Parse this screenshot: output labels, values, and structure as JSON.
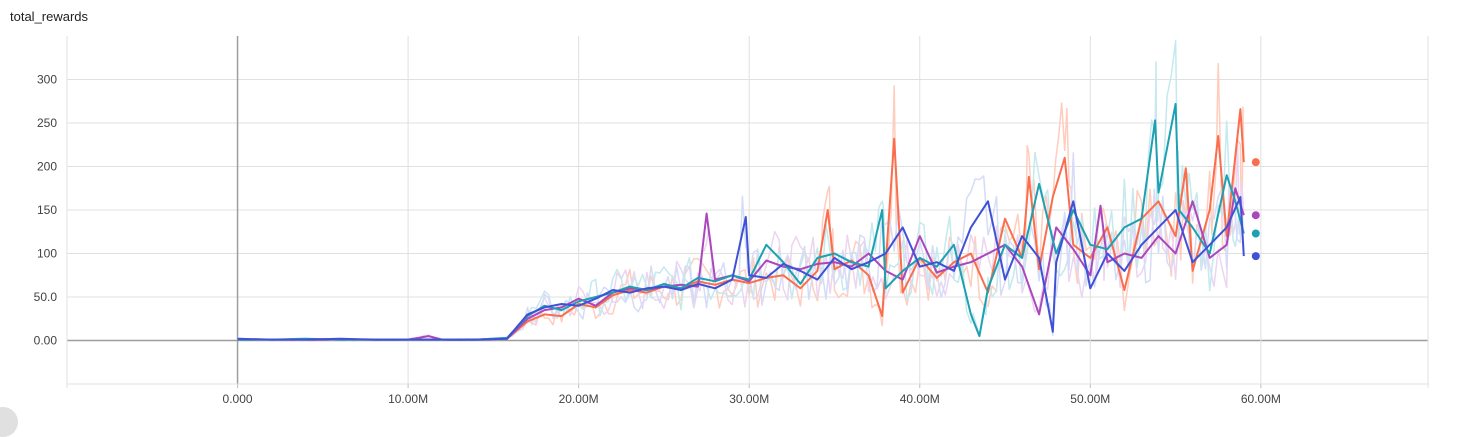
{
  "chart_data": {
    "type": "line",
    "title": "total_rewards",
    "xlabel": "",
    "ylabel": "",
    "xlim": [
      -10000000,
      69800000
    ],
    "ylim": [
      -50,
      350
    ],
    "xticks": [
      0,
      10000000,
      20000000,
      30000000,
      40000000,
      50000000,
      60000000
    ],
    "xtick_labels": [
      "0.000",
      "10.00M",
      "20.00M",
      "30.00M",
      "40.00M",
      "50.00M",
      "60.00M"
    ],
    "yticks": [
      0,
      50,
      100,
      150,
      200,
      250,
      300
    ],
    "ytick_labels": [
      "0.00",
      "50.0",
      "100",
      "150",
      "200",
      "250",
      "300"
    ],
    "grid": true,
    "legend": "none",
    "series": [
      {
        "color": "#fa6e4d",
        "raw_color": "#ffcdbd",
        "final_value": 205,
        "points": [
          [
            0,
            1
          ],
          [
            2000000,
            1
          ],
          [
            4000000,
            1
          ],
          [
            6000000,
            1
          ],
          [
            8000000,
            1
          ],
          [
            10000000,
            1
          ],
          [
            12000000,
            1
          ],
          [
            14000000,
            1
          ],
          [
            15800000,
            2
          ],
          [
            17000000,
            22
          ],
          [
            18000000,
            30
          ],
          [
            19000000,
            28
          ],
          [
            20000000,
            42
          ],
          [
            21000000,
            38
          ],
          [
            22000000,
            52
          ],
          [
            23000000,
            58
          ],
          [
            24000000,
            55
          ],
          [
            25000000,
            62
          ],
          [
            26000000,
            60
          ],
          [
            27000000,
            68
          ],
          [
            28000000,
            64
          ],
          [
            29000000,
            70
          ],
          [
            30000000,
            66
          ],
          [
            31000000,
            72
          ],
          [
            32000000,
            75
          ],
          [
            33000000,
            60
          ],
          [
            34000000,
            80
          ],
          [
            34600000,
            150
          ],
          [
            35000000,
            82
          ],
          [
            36000000,
            92
          ],
          [
            37000000,
            75
          ],
          [
            37800000,
            28
          ],
          [
            38500000,
            232
          ],
          [
            39000000,
            55
          ],
          [
            40000000,
            95
          ],
          [
            41000000,
            72
          ],
          [
            42000000,
            90
          ],
          [
            43000000,
            100
          ],
          [
            44000000,
            55
          ],
          [
            45000000,
            140
          ],
          [
            46000000,
            95
          ],
          [
            46400000,
            188
          ],
          [
            47000000,
            82
          ],
          [
            47800000,
            165
          ],
          [
            48500000,
            210
          ],
          [
            49000000,
            110
          ],
          [
            50000000,
            95
          ],
          [
            51000000,
            130
          ],
          [
            52000000,
            58
          ],
          [
            53000000,
            140
          ],
          [
            54000000,
            160
          ],
          [
            55000000,
            120
          ],
          [
            55600000,
            198
          ],
          [
            56000000,
            80
          ],
          [
            57000000,
            150
          ],
          [
            57500000,
            235
          ],
          [
            58000000,
            120
          ],
          [
            58800000,
            266
          ],
          [
            59000000,
            205
          ]
        ]
      },
      {
        "color": "#ab47bc",
        "raw_color": "#ebd5f0",
        "final_value": 144,
        "points": [
          [
            0,
            1
          ],
          [
            2000000,
            1
          ],
          [
            4000000,
            1
          ],
          [
            6000000,
            1
          ],
          [
            8000000,
            1
          ],
          [
            10000000,
            1
          ],
          [
            11200000,
            5
          ],
          [
            12000000,
            1
          ],
          [
            14000000,
            1
          ],
          [
            15800000,
            2
          ],
          [
            17000000,
            25
          ],
          [
            18000000,
            35
          ],
          [
            19000000,
            38
          ],
          [
            20000000,
            48
          ],
          [
            21000000,
            40
          ],
          [
            22000000,
            55
          ],
          [
            23000000,
            60
          ],
          [
            24000000,
            58
          ],
          [
            25000000,
            62
          ],
          [
            26000000,
            64
          ],
          [
            27000000,
            62
          ],
          [
            27500000,
            146
          ],
          [
            28000000,
            70
          ],
          [
            29000000,
            75
          ],
          [
            30000000,
            68
          ],
          [
            31000000,
            92
          ],
          [
            32000000,
            85
          ],
          [
            33000000,
            82
          ],
          [
            34000000,
            88
          ],
          [
            35000000,
            90
          ],
          [
            36000000,
            85
          ],
          [
            37000000,
            100
          ],
          [
            38000000,
            80
          ],
          [
            39000000,
            70
          ],
          [
            40000000,
            120
          ],
          [
            41000000,
            78
          ],
          [
            42000000,
            85
          ],
          [
            43000000,
            90
          ],
          [
            44000000,
            100
          ],
          [
            45000000,
            110
          ],
          [
            46000000,
            85
          ],
          [
            47000000,
            30
          ],
          [
            48000000,
            130
          ],
          [
            49000000,
            105
          ],
          [
            50000000,
            75
          ],
          [
            50600000,
            155
          ],
          [
            51000000,
            90
          ],
          [
            52000000,
            100
          ],
          [
            53000000,
            95
          ],
          [
            54000000,
            120
          ],
          [
            55000000,
            100
          ],
          [
            56000000,
            160
          ],
          [
            57000000,
            95
          ],
          [
            58000000,
            110
          ],
          [
            58500000,
            175
          ],
          [
            59000000,
            144
          ]
        ]
      },
      {
        "color": "#1ea0b3",
        "raw_color": "#c4e9ee",
        "final_value": 123,
        "points": [
          [
            0,
            1
          ],
          [
            2000000,
            1
          ],
          [
            4000000,
            2
          ],
          [
            6000000,
            1
          ],
          [
            8000000,
            1
          ],
          [
            10000000,
            1
          ],
          [
            12000000,
            1
          ],
          [
            14000000,
            1
          ],
          [
            15800000,
            3
          ],
          [
            17000000,
            28
          ],
          [
            18000000,
            40
          ],
          [
            19000000,
            35
          ],
          [
            20000000,
            45
          ],
          [
            21000000,
            50
          ],
          [
            22000000,
            55
          ],
          [
            23000000,
            62
          ],
          [
            24000000,
            58
          ],
          [
            25000000,
            65
          ],
          [
            26000000,
            60
          ],
          [
            27000000,
            72
          ],
          [
            28000000,
            68
          ],
          [
            29000000,
            75
          ],
          [
            30000000,
            70
          ],
          [
            31000000,
            110
          ],
          [
            32000000,
            90
          ],
          [
            33000000,
            65
          ],
          [
            34000000,
            95
          ],
          [
            35000000,
            100
          ],
          [
            36000000,
            90
          ],
          [
            37000000,
            85
          ],
          [
            37800000,
            150
          ],
          [
            38000000,
            60
          ],
          [
            39000000,
            80
          ],
          [
            40000000,
            95
          ],
          [
            41000000,
            85
          ],
          [
            42000000,
            110
          ],
          [
            43000000,
            30
          ],
          [
            43500000,
            5
          ],
          [
            44000000,
            60
          ],
          [
            45000000,
            110
          ],
          [
            46000000,
            95
          ],
          [
            47000000,
            180
          ],
          [
            48000000,
            100
          ],
          [
            49000000,
            150
          ],
          [
            50000000,
            110
          ],
          [
            51000000,
            105
          ],
          [
            52000000,
            130
          ],
          [
            53000000,
            140
          ],
          [
            53800000,
            253
          ],
          [
            54000000,
            170
          ],
          [
            55000000,
            272
          ],
          [
            55200000,
            150
          ],
          [
            56000000,
            130
          ],
          [
            57000000,
            100
          ],
          [
            58000000,
            190
          ],
          [
            58500000,
            160
          ],
          [
            59000000,
            123
          ]
        ]
      },
      {
        "color": "#3f51d6",
        "raw_color": "#d6dcf7",
        "final_value": 97,
        "points": [
          [
            0,
            2
          ],
          [
            2000000,
            1
          ],
          [
            4000000,
            1
          ],
          [
            6000000,
            2
          ],
          [
            8000000,
            1
          ],
          [
            10000000,
            1
          ],
          [
            12000000,
            1
          ],
          [
            14000000,
            1
          ],
          [
            15800000,
            2
          ],
          [
            17000000,
            30
          ],
          [
            18000000,
            38
          ],
          [
            19000000,
            42
          ],
          [
            20000000,
            40
          ],
          [
            21000000,
            48
          ],
          [
            22000000,
            58
          ],
          [
            23000000,
            55
          ],
          [
            24000000,
            60
          ],
          [
            25000000,
            62
          ],
          [
            26000000,
            58
          ],
          [
            27000000,
            65
          ],
          [
            28000000,
            60
          ],
          [
            29000000,
            70
          ],
          [
            29800000,
            142
          ],
          [
            30000000,
            75
          ],
          [
            31000000,
            72
          ],
          [
            32000000,
            88
          ],
          [
            33000000,
            80
          ],
          [
            34000000,
            70
          ],
          [
            35000000,
            95
          ],
          [
            36000000,
            82
          ],
          [
            37000000,
            90
          ],
          [
            38000000,
            100
          ],
          [
            39000000,
            130
          ],
          [
            40000000,
            85
          ],
          [
            41000000,
            90
          ],
          [
            42000000,
            80
          ],
          [
            43000000,
            130
          ],
          [
            44000000,
            160
          ],
          [
            45000000,
            70
          ],
          [
            46000000,
            120
          ],
          [
            47000000,
            95
          ],
          [
            47800000,
            10
          ],
          [
            48000000,
            90
          ],
          [
            49000000,
            160
          ],
          [
            50000000,
            60
          ],
          [
            51000000,
            100
          ],
          [
            52000000,
            80
          ],
          [
            53000000,
            110
          ],
          [
            54000000,
            130
          ],
          [
            55000000,
            150
          ],
          [
            56000000,
            90
          ],
          [
            57000000,
            110
          ],
          [
            58000000,
            130
          ],
          [
            58800000,
            165
          ],
          [
            59000000,
            97
          ]
        ]
      }
    ]
  }
}
